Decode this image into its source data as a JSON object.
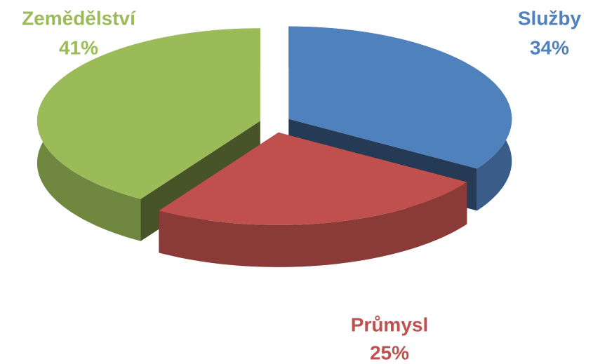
{
  "chart_data": {
    "type": "pie",
    "categories": [
      "Služby",
      "Průmysl",
      "Zemědělství"
    ],
    "values": [
      34,
      25,
      41
    ],
    "value_labels": [
      "34%",
      "25%",
      "41%"
    ],
    "colors": [
      "#4f81bd",
      "#c0504d",
      "#9bbb59"
    ]
  }
}
